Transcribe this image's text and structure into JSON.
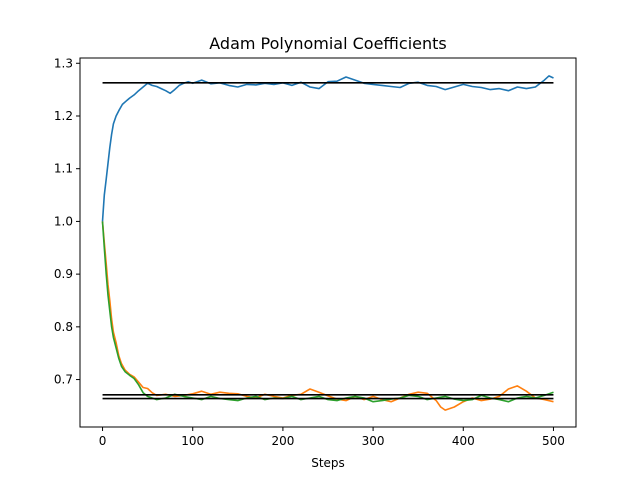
{
  "chart_data": {
    "type": "line",
    "title": "Adam Polynomial Coefficients",
    "xlabel": "Steps",
    "ylabel": "",
    "xlim": [
      -25,
      525
    ],
    "ylim": [
      0.61,
      1.31
    ],
    "xticks": [
      0,
      100,
      200,
      300,
      400,
      500
    ],
    "yticks": [
      0.7,
      0.8,
      0.9,
      1.0,
      1.1,
      1.2,
      1.3
    ],
    "xtick_labels": [
      "0",
      "100",
      "200",
      "300",
      "400",
      "500"
    ],
    "ytick_labels": [
      "0.7",
      "0.8",
      "0.9",
      "1.0",
      "1.1",
      "1.2",
      "1.3"
    ],
    "grid": false,
    "legend": "none",
    "reference_lines": [
      {
        "y": 1.263,
        "x_range": [
          0,
          500
        ],
        "color": "#000000"
      },
      {
        "y": 0.671,
        "x_range": [
          0,
          500
        ],
        "color": "#000000"
      },
      {
        "y": 0.664,
        "x_range": [
          0,
          500
        ],
        "color": "#000000"
      }
    ],
    "series": [
      {
        "color": "#1f77b4",
        "points": [
          [
            0,
            1.0
          ],
          [
            2,
            1.05
          ],
          [
            4,
            1.08
          ],
          [
            6,
            1.11
          ],
          [
            8,
            1.14
          ],
          [
            10,
            1.165
          ],
          [
            12,
            1.185
          ],
          [
            15,
            1.2
          ],
          [
            18,
            1.21
          ],
          [
            22,
            1.222
          ],
          [
            26,
            1.228
          ],
          [
            30,
            1.234
          ],
          [
            35,
            1.24
          ],
          [
            40,
            1.248
          ],
          [
            45,
            1.255
          ],
          [
            50,
            1.262
          ],
          [
            55,
            1.258
          ],
          [
            60,
            1.256
          ],
          [
            65,
            1.252
          ],
          [
            70,
            1.248
          ],
          [
            75,
            1.243
          ],
          [
            80,
            1.25
          ],
          [
            85,
            1.258
          ],
          [
            90,
            1.262
          ],
          [
            95,
            1.265
          ],
          [
            100,
            1.262
          ],
          [
            110,
            1.268
          ],
          [
            120,
            1.261
          ],
          [
            130,
            1.263
          ],
          [
            140,
            1.258
          ],
          [
            150,
            1.255
          ],
          [
            160,
            1.26
          ],
          [
            170,
            1.259
          ],
          [
            180,
            1.262
          ],
          [
            190,
            1.26
          ],
          [
            200,
            1.263
          ],
          [
            210,
            1.258
          ],
          [
            220,
            1.264
          ],
          [
            230,
            1.255
          ],
          [
            240,
            1.252
          ],
          [
            250,
            1.265
          ],
          [
            260,
            1.266
          ],
          [
            270,
            1.274
          ],
          [
            280,
            1.268
          ],
          [
            290,
            1.262
          ],
          [
            300,
            1.26
          ],
          [
            310,
            1.258
          ],
          [
            320,
            1.256
          ],
          [
            330,
            1.254
          ],
          [
            340,
            1.262
          ],
          [
            350,
            1.264
          ],
          [
            360,
            1.258
          ],
          [
            370,
            1.256
          ],
          [
            380,
            1.25
          ],
          [
            390,
            1.255
          ],
          [
            400,
            1.26
          ],
          [
            410,
            1.256
          ],
          [
            420,
            1.254
          ],
          [
            430,
            1.25
          ],
          [
            440,
            1.252
          ],
          [
            450,
            1.248
          ],
          [
            460,
            1.255
          ],
          [
            470,
            1.252
          ],
          [
            480,
            1.255
          ],
          [
            490,
            1.268
          ],
          [
            495,
            1.276
          ],
          [
            500,
            1.272
          ]
        ]
      },
      {
        "color": "#ff7f0e",
        "points": [
          [
            0,
            1.0
          ],
          [
            2,
            0.96
          ],
          [
            4,
            0.92
          ],
          [
            6,
            0.88
          ],
          [
            8,
            0.85
          ],
          [
            10,
            0.815
          ],
          [
            12,
            0.79
          ],
          [
            15,
            0.77
          ],
          [
            18,
            0.745
          ],
          [
            21,
            0.73
          ],
          [
            25,
            0.718
          ],
          [
            30,
            0.71
          ],
          [
            35,
            0.705
          ],
          [
            40,
            0.695
          ],
          [
            45,
            0.685
          ],
          [
            50,
            0.683
          ],
          [
            55,
            0.675
          ],
          [
            60,
            0.67
          ],
          [
            70,
            0.672
          ],
          [
            80,
            0.668
          ],
          [
            90,
            0.67
          ],
          [
            100,
            0.673
          ],
          [
            110,
            0.678
          ],
          [
            120,
            0.672
          ],
          [
            130,
            0.676
          ],
          [
            140,
            0.674
          ],
          [
            150,
            0.673
          ],
          [
            160,
            0.668
          ],
          [
            170,
            0.665
          ],
          [
            180,
            0.672
          ],
          [
            190,
            0.668
          ],
          [
            200,
            0.665
          ],
          [
            210,
            0.67
          ],
          [
            220,
            0.672
          ],
          [
            230,
            0.682
          ],
          [
            240,
            0.676
          ],
          [
            250,
            0.669
          ],
          [
            260,
            0.663
          ],
          [
            270,
            0.66
          ],
          [
            280,
            0.668
          ],
          [
            290,
            0.662
          ],
          [
            300,
            0.668
          ],
          [
            310,
            0.662
          ],
          [
            320,
            0.658
          ],
          [
            330,
            0.665
          ],
          [
            340,
            0.672
          ],
          [
            350,
            0.676
          ],
          [
            360,
            0.674
          ],
          [
            370,
            0.66
          ],
          [
            375,
            0.648
          ],
          [
            380,
            0.642
          ],
          [
            390,
            0.648
          ],
          [
            400,
            0.658
          ],
          [
            410,
            0.665
          ],
          [
            420,
            0.66
          ],
          [
            430,
            0.663
          ],
          [
            440,
            0.668
          ],
          [
            450,
            0.682
          ],
          [
            460,
            0.688
          ],
          [
            470,
            0.678
          ],
          [
            480,
            0.665
          ],
          [
            490,
            0.662
          ],
          [
            500,
            0.658
          ]
        ]
      },
      {
        "color": "#2ca02c",
        "points": [
          [
            0,
            1.0
          ],
          [
            2,
            0.95
          ],
          [
            4,
            0.9
          ],
          [
            6,
            0.86
          ],
          [
            8,
            0.83
          ],
          [
            10,
            0.8
          ],
          [
            12,
            0.78
          ],
          [
            15,
            0.76
          ],
          [
            18,
            0.74
          ],
          [
            21,
            0.725
          ],
          [
            25,
            0.715
          ],
          [
            30,
            0.708
          ],
          [
            35,
            0.702
          ],
          [
            40,
            0.69
          ],
          [
            45,
            0.675
          ],
          [
            50,
            0.668
          ],
          [
            55,
            0.665
          ],
          [
            60,
            0.662
          ],
          [
            70,
            0.665
          ],
          [
            80,
            0.672
          ],
          [
            90,
            0.668
          ],
          [
            100,
            0.665
          ],
          [
            110,
            0.662
          ],
          [
            120,
            0.668
          ],
          [
            130,
            0.664
          ],
          [
            140,
            0.662
          ],
          [
            150,
            0.66
          ],
          [
            160,
            0.665
          ],
          [
            170,
            0.668
          ],
          [
            180,
            0.662
          ],
          [
            190,
            0.665
          ],
          [
            200,
            0.664
          ],
          [
            210,
            0.668
          ],
          [
            220,
            0.662
          ],
          [
            230,
            0.665
          ],
          [
            240,
            0.668
          ],
          [
            250,
            0.662
          ],
          [
            260,
            0.66
          ],
          [
            270,
            0.665
          ],
          [
            280,
            0.668
          ],
          [
            290,
            0.665
          ],
          [
            300,
            0.658
          ],
          [
            310,
            0.66
          ],
          [
            320,
            0.663
          ],
          [
            330,
            0.665
          ],
          [
            340,
            0.67
          ],
          [
            350,
            0.668
          ],
          [
            360,
            0.662
          ],
          [
            370,
            0.665
          ],
          [
            380,
            0.668
          ],
          [
            390,
            0.663
          ],
          [
            400,
            0.66
          ],
          [
            410,
            0.662
          ],
          [
            420,
            0.67
          ],
          [
            430,
            0.665
          ],
          [
            440,
            0.662
          ],
          [
            450,
            0.658
          ],
          [
            460,
            0.665
          ],
          [
            470,
            0.668
          ],
          [
            480,
            0.665
          ],
          [
            490,
            0.67
          ],
          [
            500,
            0.676
          ]
        ]
      }
    ]
  }
}
